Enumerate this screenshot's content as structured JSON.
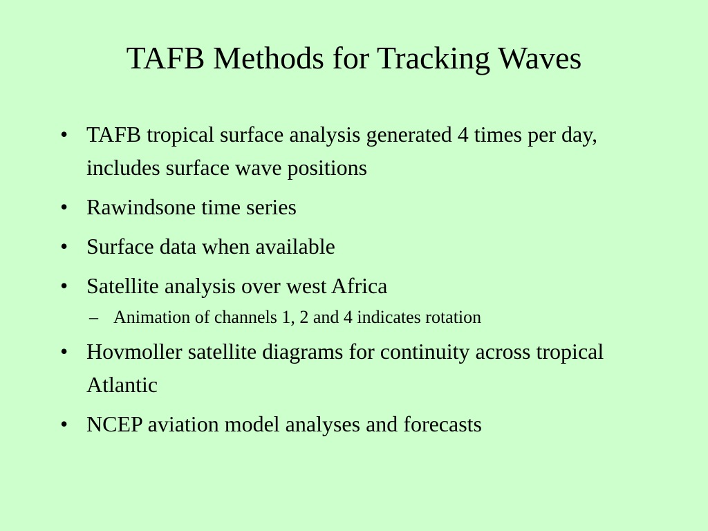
{
  "slide": {
    "title": "TAFB Methods for Tracking Waves",
    "bullet_symbol": "•",
    "sub_bullet_symbol": "–",
    "bullets": [
      "TAFB tropical surface analysis generated 4 times per day, includes surface wave positions",
      "Rawindsone time series",
      "Surface data when available",
      "Satellite analysis over west Africa",
      "Hovmoller satellite diagrams for continuity across tropical Atlantic",
      "NCEP aviation model analyses and forecasts"
    ],
    "sub_bullets": {
      "satellite_analysis": [
        "Animation of channels 1, 2 and 4 indicates rotation"
      ]
    }
  },
  "colors": {
    "background": "#ccffcc",
    "text": "#000000"
  }
}
